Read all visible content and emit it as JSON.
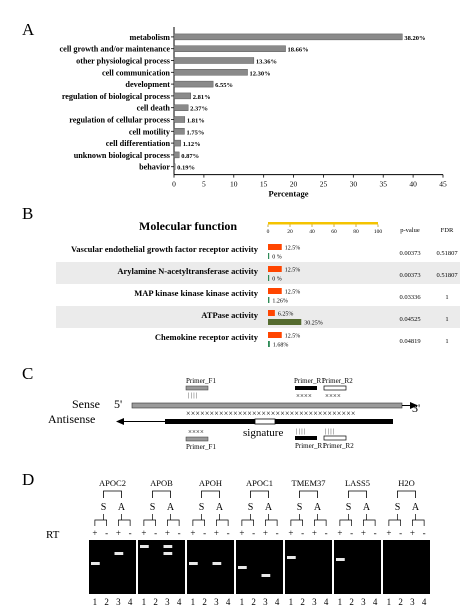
{
  "panels": {
    "a": "A",
    "b": "B",
    "c": "C",
    "d": "D"
  },
  "chart_data": [
    {
      "type": "bar",
      "orientation": "horizontal",
      "categories": [
        "metabolism",
        "cell growth and/or maintenance",
        "other physiological process",
        "cell communication",
        "development",
        "regulation of biological process",
        "cell death",
        "regulation of cellular process",
        "cell motility",
        "cell differentiation",
        "unknown biological process",
        "behavior"
      ],
      "values": [
        38.2,
        18.66,
        13.36,
        12.3,
        6.55,
        2.81,
        2.37,
        1.81,
        1.75,
        1.12,
        0.87,
        0.19
      ],
      "value_labels": [
        "38.20%",
        "18.66%",
        "13.36%",
        "12.30%",
        "6.55%",
        "2.81%",
        "2.37%",
        "1.81%",
        "1.75%",
        "1.12%",
        "0.87%",
        "0.19%"
      ],
      "xlabel": "Percentage",
      "xlim": [
        0,
        45
      ],
      "xticks": [
        0,
        5,
        10,
        15,
        20,
        25,
        30,
        35,
        40,
        45
      ],
      "bar_color": "#8a8a8a",
      "grid": false
    },
    {
      "type": "bar",
      "orientation": "horizontal",
      "title": "Molecular function",
      "scale_ticks": [
        "0",
        "20",
        "40",
        "60",
        "80",
        "100"
      ],
      "col_headers": {
        "p": "p-value",
        "fdr": "FDR"
      },
      "rows": [
        {
          "label": "Vascular endothelial growth factor receptor activity",
          "bars": [
            {
              "value": 12.5,
              "text": "12.5%",
              "color": "#ff4500"
            },
            {
              "value": 0,
              "text": "0 %",
              "color": "#2e8b57"
            }
          ],
          "p": "0.00373",
          "fdr": "0.51807",
          "shaded": false
        },
        {
          "label": "Arylamine N-acetyltransferase activity",
          "bars": [
            {
              "value": 12.5,
              "text": "12.5%",
              "color": "#ff4500"
            },
            {
              "value": 0,
              "text": "0 %",
              "color": "#2e8b57"
            }
          ],
          "p": "0.00373",
          "fdr": "0.51807",
          "shaded": true
        },
        {
          "label": "MAP kinase kinase kinase activity",
          "bars": [
            {
              "value": 12.5,
              "text": "12.5%",
              "color": "#ff4500"
            },
            {
              "value": 1.26,
              "text": "1.26%",
              "color": "#2e8b57"
            }
          ],
          "p": "0.03336",
          "fdr": "1",
          "shaded": false
        },
        {
          "label": "ATPase activity",
          "bars": [
            {
              "value": 6.25,
              "text": "6.25%",
              "color": "#ff4500"
            },
            {
              "value": 30.25,
              "text": "30.25%",
              "color": "#556b2f"
            }
          ],
          "p": "0.04525",
          "fdr": "1",
          "shaded": true
        },
        {
          "label": "Chemokine receptor activity",
          "bars": [
            {
              "value": 12.5,
              "text": "12.5%",
              "color": "#ff4500"
            },
            {
              "value": 1.68,
              "text": "1.68%",
              "color": "#2e8b57"
            }
          ],
          "p": "0.04819",
          "fdr": "1",
          "shaded": false
        }
      ]
    }
  ],
  "diagram": {
    "sense": "Sense",
    "antisense": "Antisense",
    "five_prime": "5'",
    "three_prime": "3'",
    "signature": "signature",
    "primer_f1_top": "Primer_F1",
    "primer_r1_top": "Primer_R1",
    "primer_r2_top": "Primer_R2",
    "primer_f1_bottom": "Primer_F1",
    "primer_r1_bottom": "Primer_R1",
    "primer_r2_bottom": "Primer_R2",
    "x_pairs": "××××××××××××××××××××××××××××××××××××",
    "x_small": "××××",
    "ticks_small": "| | | |"
  },
  "gel": {
    "genes": [
      "APOC2",
      "APOB",
      "APOH",
      "APOC1",
      "TMEM37",
      "LASS5",
      "H2O"
    ],
    "strand_labels": [
      "S",
      "A"
    ],
    "rt_label": "RT",
    "rt_signs": [
      "+",
      "-",
      "+",
      "-"
    ],
    "lanes": [
      "1",
      "2",
      "3",
      "4"
    ]
  }
}
